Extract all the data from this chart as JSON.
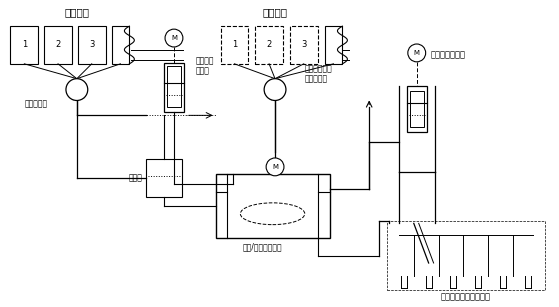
{
  "bg_color": "#ffffff",
  "labels": {
    "liquid": "液体成分",
    "powder": "粉末成分",
    "rotate_valve": "回転バルブ",
    "syringe_pump1": "シリンジ\nポンプ",
    "valve_dose": "バルブおよび\nドーズ制御",
    "valve": "バルブ",
    "mixing": "混合/ステージング",
    "syringe_pump2": "シリンジポンプ",
    "culture_dish": "培養ディッシュウェル"
  },
  "box_numbers_liquid": [
    "1",
    "2",
    "3"
  ],
  "box_numbers_powder": [
    "1",
    "2",
    "3"
  ]
}
